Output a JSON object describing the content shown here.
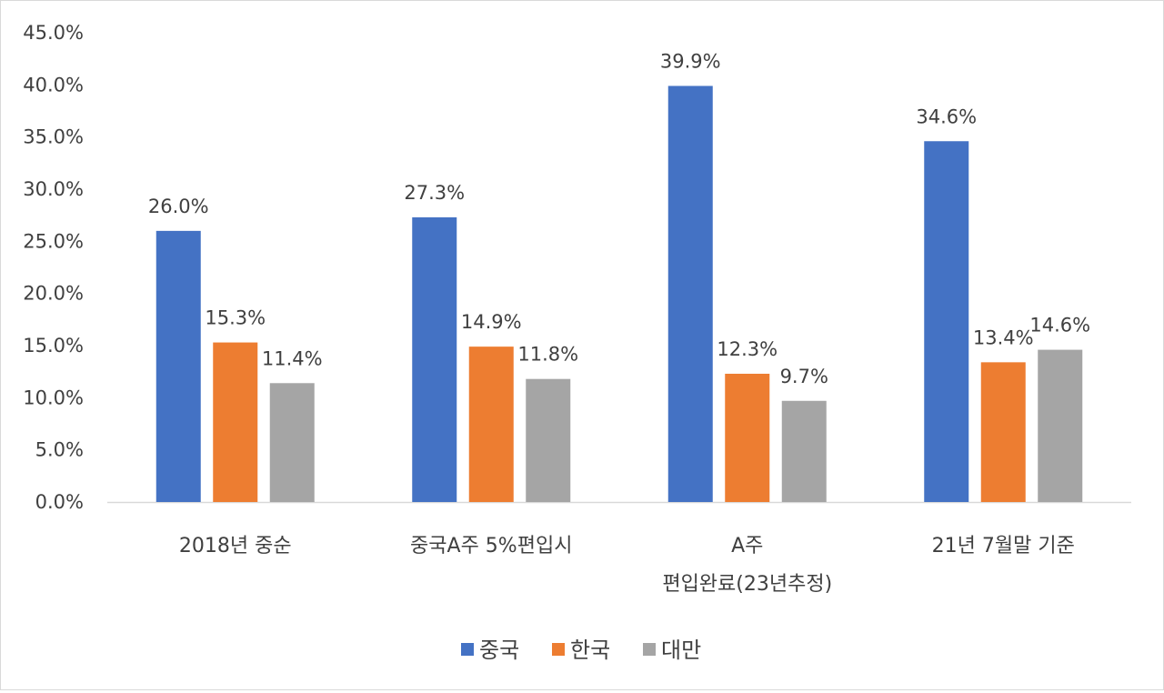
{
  "chart_data": {
    "type": "bar",
    "categories": [
      [
        "2018년 중순"
      ],
      [
        "중국A주 5%편입시"
      ],
      [
        "A주",
        "편입완료(23년추정)"
      ],
      [
        "21년 7월말 기준"
      ]
    ],
    "series": [
      {
        "name": "중국",
        "color": "#4472c4",
        "values": [
          26.0,
          27.3,
          39.9,
          34.6
        ],
        "labels": [
          "26.0%",
          "27.3%",
          "39.9%",
          "34.6%"
        ]
      },
      {
        "name": "한국",
        "color": "#ed7d31",
        "values": [
          15.3,
          14.9,
          12.3,
          13.4
        ],
        "labels": [
          "15.3%",
          "14.9%",
          "12.3%",
          "13.4%"
        ]
      },
      {
        "name": "대만",
        "color": "#a5a5a5",
        "values": [
          11.4,
          11.8,
          9.7,
          14.6
        ],
        "labels": [
          "11.4%",
          "11.8%",
          "9.7%",
          "14.6%"
        ]
      }
    ],
    "y_ticks": [
      "0.0%",
      "5.0%",
      "10.0%",
      "15.0%",
      "20.0%",
      "25.0%",
      "30.0%",
      "35.0%",
      "40.0%",
      "45.0%"
    ],
    "ylim": [
      0,
      45
    ],
    "grid": false,
    "legend_position": "bottom",
    "title": "",
    "xlabel": "",
    "ylabel": ""
  }
}
